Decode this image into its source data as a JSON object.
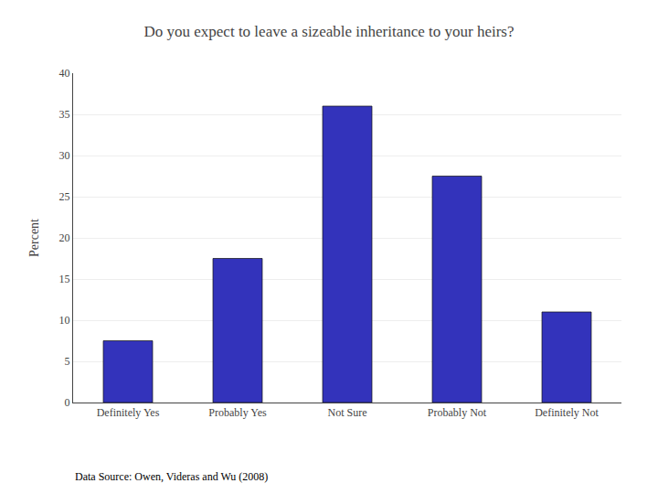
{
  "chart_data": {
    "type": "bar",
    "title": "Do you expect to leave a sizeable inheritance to your heirs?",
    "categories": [
      "Definitely Yes",
      "Probably Yes",
      "Not Sure",
      "Probably Not",
      "Definitely Not"
    ],
    "values": [
      7.5,
      17.5,
      36.0,
      27.5,
      11.0
    ],
    "color": "#3333BB",
    "ylabel": "Percent",
    "ylim": [
      0,
      40
    ],
    "yticks": [
      0,
      5,
      10,
      15,
      20,
      25,
      30,
      35,
      40
    ],
    "grid": true,
    "annotations": [
      "Data Source: Owen, Videras and Wu (2008)"
    ]
  }
}
